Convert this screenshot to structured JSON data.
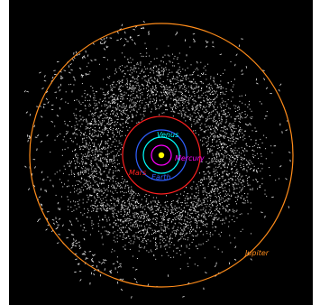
{
  "diagram": {
    "background_color": "#000000",
    "sun": {
      "color": "#ffff00"
    },
    "asteroid_belt": {
      "color": "#e6e6e6"
    },
    "planets": [
      {
        "name": "Mercury",
        "color": "#ff00ff"
      },
      {
        "name": "Venus",
        "color": "#00ffff"
      },
      {
        "name": "Earth",
        "color": "#3060ff"
      },
      {
        "name": "Mars",
        "color": "#ff2020"
      },
      {
        "name": "Jupiter",
        "color": "#ff8c1a"
      }
    ]
  }
}
